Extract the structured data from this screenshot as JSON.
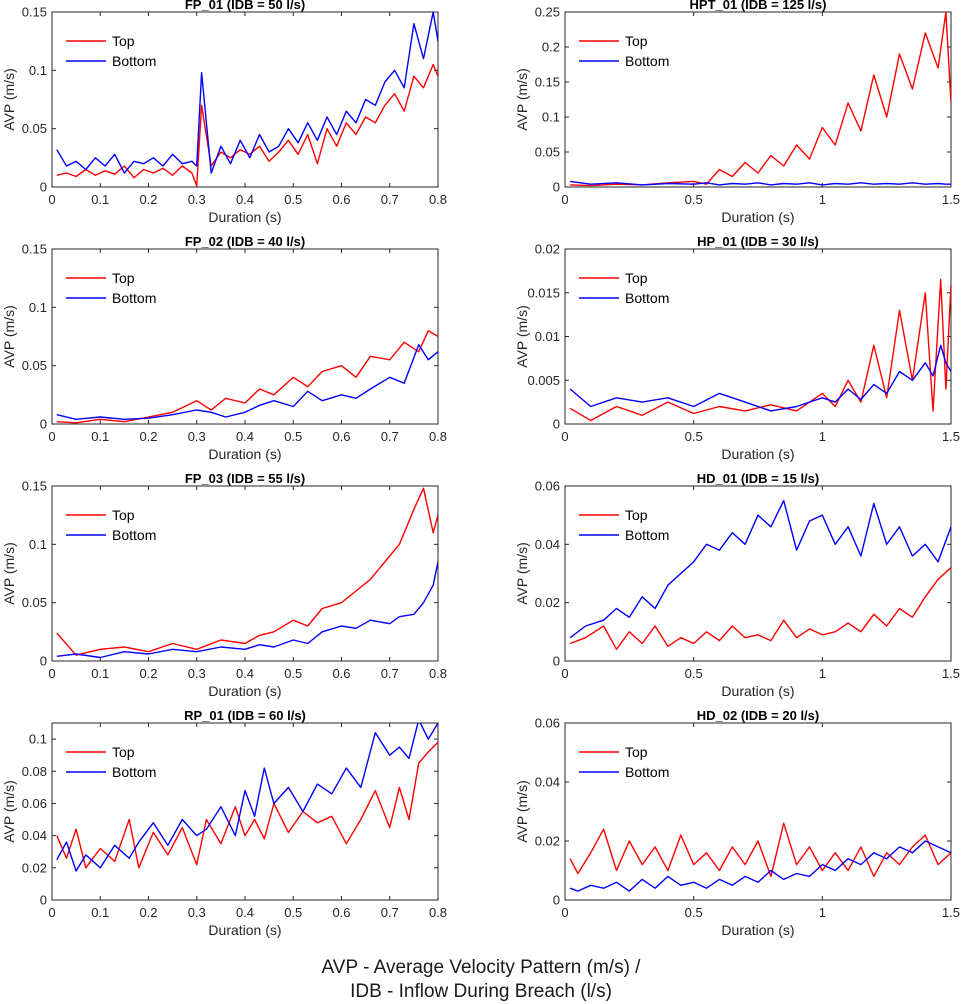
{
  "caption": {
    "line1": "AVP - Average Velocity Pattern (m/s) /",
    "line2": "IDB - Inflow During Breach (l/s)"
  },
  "colors": {
    "top": "#ff0000",
    "bottom": "#0000ff",
    "axis": "#262626",
    "background": "#ffffff"
  },
  "chart_data": [
    {
      "type": "line",
      "title": "FP_01 (IDB = 50 l/s)",
      "xlabel": "Duration (s)",
      "ylabel": "AVP (m/s)",
      "xlim": [
        0,
        0.8
      ],
      "ylim": [
        0,
        0.15
      ],
      "xticks": [
        0,
        0.1,
        0.2,
        0.3,
        0.4,
        0.5,
        0.6,
        0.7,
        0.8
      ],
      "xtick_labels": [
        "0",
        "0.1",
        "0.2",
        "0.3",
        "0.4",
        "0.5",
        "0.6",
        "0.7",
        "0.8"
      ],
      "yticks": [
        0,
        0.05,
        0.1,
        0.15
      ],
      "ytick_labels": [
        "0",
        "0.05",
        "0.1",
        "0.15"
      ],
      "legend": "top-left",
      "x": [
        0.01,
        0.03,
        0.05,
        0.07,
        0.09,
        0.11,
        0.13,
        0.15,
        0.17,
        0.19,
        0.21,
        0.23,
        0.25,
        0.27,
        0.29,
        0.3,
        0.31,
        0.33,
        0.35,
        0.37,
        0.39,
        0.41,
        0.43,
        0.45,
        0.47,
        0.49,
        0.51,
        0.53,
        0.55,
        0.57,
        0.59,
        0.61,
        0.63,
        0.65,
        0.67,
        0.69,
        0.71,
        0.73,
        0.75,
        0.77,
        0.79,
        0.8
      ],
      "series": [
        {
          "name": "Top",
          "values": [
            0.01,
            0.012,
            0.009,
            0.015,
            0.01,
            0.014,
            0.011,
            0.018,
            0.008,
            0.015,
            0.012,
            0.016,
            0.01,
            0.018,
            0.012,
            0.001,
            0.07,
            0.018,
            0.03,
            0.025,
            0.032,
            0.028,
            0.035,
            0.022,
            0.03,
            0.04,
            0.028,
            0.045,
            0.02,
            0.05,
            0.035,
            0.055,
            0.045,
            0.06,
            0.055,
            0.07,
            0.08,
            0.065,
            0.095,
            0.085,
            0.105,
            0.095
          ]
        },
        {
          "name": "Bottom",
          "values": [
            0.032,
            0.018,
            0.022,
            0.015,
            0.025,
            0.018,
            0.028,
            0.012,
            0.022,
            0.02,
            0.025,
            0.018,
            0.028,
            0.02,
            0.022,
            0.018,
            0.098,
            0.012,
            0.035,
            0.02,
            0.04,
            0.025,
            0.045,
            0.03,
            0.035,
            0.05,
            0.038,
            0.055,
            0.04,
            0.06,
            0.045,
            0.065,
            0.055,
            0.075,
            0.07,
            0.09,
            0.1,
            0.085,
            0.14,
            0.11,
            0.15,
            0.125
          ]
        }
      ]
    },
    {
      "type": "line",
      "title": "HPT_01 (IDB = 125 l/s)",
      "xlabel": "Duration (s)",
      "ylabel": "AVP (m/s)",
      "xlim": [
        0,
        1.5
      ],
      "ylim": [
        0,
        0.25
      ],
      "xticks": [
        0,
        0.5,
        1,
        1.5
      ],
      "xtick_labels": [
        "0",
        "0.5",
        "1",
        "1.5"
      ],
      "yticks": [
        0,
        0.05,
        0.1,
        0.15,
        0.2,
        0.25
      ],
      "ytick_labels": [
        "0",
        "0.05",
        "0.1",
        "0.15",
        "0.2",
        "0.25"
      ],
      "legend": "top-left",
      "x": [
        0.02,
        0.1,
        0.2,
        0.3,
        0.4,
        0.5,
        0.55,
        0.6,
        0.65,
        0.7,
        0.75,
        0.8,
        0.85,
        0.9,
        0.95,
        1.0,
        1.05,
        1.1,
        1.15,
        1.2,
        1.25,
        1.3,
        1.35,
        1.4,
        1.45,
        1.48,
        1.5
      ],
      "series": [
        {
          "name": "Top",
          "values": [
            0.003,
            0.002,
            0.004,
            0.003,
            0.006,
            0.008,
            0.004,
            0.025,
            0.015,
            0.035,
            0.02,
            0.045,
            0.03,
            0.06,
            0.04,
            0.085,
            0.06,
            0.12,
            0.08,
            0.16,
            0.1,
            0.19,
            0.14,
            0.22,
            0.17,
            0.25,
            0.12
          ]
        },
        {
          "name": "Bottom",
          "values": [
            0.008,
            0.004,
            0.006,
            0.003,
            0.005,
            0.004,
            0.006,
            0.003,
            0.005,
            0.004,
            0.006,
            0.003,
            0.005,
            0.004,
            0.006,
            0.003,
            0.005,
            0.004,
            0.006,
            0.004,
            0.005,
            0.004,
            0.006,
            0.004,
            0.005,
            0.004,
            0.004
          ]
        }
      ]
    },
    {
      "type": "line",
      "title": "FP_02 (IDB = 40 l/s)",
      "xlabel": "Duration (s)",
      "ylabel": "AVP (m/s)",
      "xlim": [
        0,
        0.8
      ],
      "ylim": [
        0,
        0.15
      ],
      "xticks": [
        0,
        0.1,
        0.2,
        0.3,
        0.4,
        0.5,
        0.6,
        0.7,
        0.8
      ],
      "xtick_labels": [
        "0",
        "0.1",
        "0.2",
        "0.3",
        "0.4",
        "0.5",
        "0.6",
        "0.7",
        "0.8"
      ],
      "yticks": [
        0,
        0.05,
        0.1,
        0.15
      ],
      "ytick_labels": [
        "0",
        "0.05",
        "0.1",
        "0.15"
      ],
      "legend": "top-left",
      "x": [
        0.01,
        0.05,
        0.1,
        0.15,
        0.2,
        0.25,
        0.3,
        0.33,
        0.36,
        0.4,
        0.43,
        0.46,
        0.5,
        0.53,
        0.56,
        0.6,
        0.63,
        0.66,
        0.7,
        0.73,
        0.76,
        0.78,
        0.8
      ],
      "series": [
        {
          "name": "Top",
          "values": [
            0.002,
            0.001,
            0.004,
            0.002,
            0.006,
            0.01,
            0.02,
            0.012,
            0.022,
            0.018,
            0.03,
            0.025,
            0.04,
            0.032,
            0.045,
            0.05,
            0.04,
            0.058,
            0.055,
            0.07,
            0.062,
            0.08,
            0.075
          ]
        },
        {
          "name": "Bottom",
          "values": [
            0.008,
            0.004,
            0.006,
            0.004,
            0.005,
            0.008,
            0.012,
            0.01,
            0.006,
            0.01,
            0.016,
            0.02,
            0.015,
            0.028,
            0.02,
            0.025,
            0.022,
            0.03,
            0.04,
            0.035,
            0.068,
            0.055,
            0.062
          ]
        }
      ]
    },
    {
      "type": "line",
      "title": "HP_01 (IDB = 30 l/s)",
      "xlabel": "Duration (s)",
      "ylabel": "AVP (m/s)",
      "xlim": [
        0,
        1.5
      ],
      "ylim": [
        0,
        0.02
      ],
      "xticks": [
        0,
        0.5,
        1,
        1.5
      ],
      "xtick_labels": [
        "0",
        "0.5",
        "1",
        "1.5"
      ],
      "yticks": [
        0,
        0.005,
        0.01,
        0.015,
        0.02
      ],
      "ytick_labels": [
        "0",
        "0.005",
        "0.01",
        "0.015",
        "0.02"
      ],
      "legend": "top-left",
      "x": [
        0.02,
        0.1,
        0.2,
        0.3,
        0.4,
        0.5,
        0.6,
        0.7,
        0.8,
        0.9,
        1.0,
        1.05,
        1.1,
        1.15,
        1.2,
        1.25,
        1.3,
        1.35,
        1.4,
        1.43,
        1.46,
        1.48,
        1.5
      ],
      "series": [
        {
          "name": "Top",
          "values": [
            0.0018,
            0.0004,
            0.002,
            0.001,
            0.0025,
            0.0012,
            0.002,
            0.0015,
            0.0022,
            0.0015,
            0.0035,
            0.002,
            0.005,
            0.0025,
            0.009,
            0.003,
            0.013,
            0.005,
            0.015,
            0.0015,
            0.0165,
            0.004,
            0.016
          ]
        },
        {
          "name": "Bottom",
          "values": [
            0.004,
            0.002,
            0.003,
            0.0025,
            0.003,
            0.002,
            0.0035,
            0.0025,
            0.0015,
            0.002,
            0.003,
            0.0025,
            0.004,
            0.0028,
            0.0045,
            0.0035,
            0.006,
            0.005,
            0.007,
            0.0055,
            0.009,
            0.007,
            0.006
          ]
        }
      ]
    },
    {
      "type": "line",
      "title": "FP_03 (IDB = 55 l/s)",
      "xlabel": "Duration (s)",
      "ylabel": "AVP (m/s)",
      "xlim": [
        0,
        0.8
      ],
      "ylim": [
        0,
        0.15
      ],
      "xticks": [
        0,
        0.1,
        0.2,
        0.3,
        0.4,
        0.5,
        0.6,
        0.7,
        0.8
      ],
      "xtick_labels": [
        "0",
        "0.1",
        "0.2",
        "0.3",
        "0.4",
        "0.5",
        "0.6",
        "0.7",
        "0.8"
      ],
      "yticks": [
        0,
        0.05,
        0.1,
        0.15
      ],
      "ytick_labels": [
        "0",
        "0.05",
        "0.1",
        "0.15"
      ],
      "legend": "top-left",
      "x": [
        0.01,
        0.05,
        0.1,
        0.15,
        0.2,
        0.25,
        0.3,
        0.35,
        0.4,
        0.43,
        0.46,
        0.5,
        0.53,
        0.56,
        0.6,
        0.63,
        0.66,
        0.7,
        0.72,
        0.75,
        0.77,
        0.79,
        0.8
      ],
      "series": [
        {
          "name": "Top",
          "values": [
            0.024,
            0.005,
            0.01,
            0.012,
            0.008,
            0.015,
            0.01,
            0.018,
            0.015,
            0.022,
            0.025,
            0.035,
            0.03,
            0.045,
            0.05,
            0.06,
            0.07,
            0.09,
            0.1,
            0.13,
            0.148,
            0.11,
            0.125
          ]
        },
        {
          "name": "Bottom",
          "values": [
            0.004,
            0.006,
            0.003,
            0.008,
            0.006,
            0.01,
            0.008,
            0.012,
            0.01,
            0.014,
            0.012,
            0.018,
            0.015,
            0.025,
            0.03,
            0.028,
            0.035,
            0.032,
            0.038,
            0.04,
            0.05,
            0.065,
            0.085
          ]
        }
      ]
    },
    {
      "type": "line",
      "title": "HD_01 (IDB = 15 l/s)",
      "xlabel": "Duration (s)",
      "ylabel": "AVP (m/s)",
      "xlim": [
        0,
        1.5
      ],
      "ylim": [
        0,
        0.06
      ],
      "xticks": [
        0,
        0.5,
        1,
        1.5
      ],
      "xtick_labels": [
        "0",
        "0.5",
        "1",
        "1.5"
      ],
      "yticks": [
        0,
        0.02,
        0.04,
        0.06
      ],
      "ytick_labels": [
        "0",
        "0.02",
        "0.04",
        "0.06"
      ],
      "legend": "top-left",
      "x": [
        0.02,
        0.08,
        0.15,
        0.2,
        0.25,
        0.3,
        0.35,
        0.4,
        0.45,
        0.5,
        0.55,
        0.6,
        0.65,
        0.7,
        0.75,
        0.8,
        0.85,
        0.9,
        0.95,
        1.0,
        1.05,
        1.1,
        1.15,
        1.2,
        1.25,
        1.3,
        1.35,
        1.4,
        1.45,
        1.5
      ],
      "series": [
        {
          "name": "Top",
          "values": [
            0.006,
            0.008,
            0.012,
            0.004,
            0.01,
            0.006,
            0.012,
            0.005,
            0.008,
            0.006,
            0.01,
            0.007,
            0.012,
            0.008,
            0.009,
            0.007,
            0.014,
            0.008,
            0.011,
            0.009,
            0.01,
            0.013,
            0.01,
            0.016,
            0.012,
            0.018,
            0.015,
            0.022,
            0.028,
            0.032
          ]
        },
        {
          "name": "Bottom",
          "values": [
            0.008,
            0.012,
            0.014,
            0.018,
            0.015,
            0.022,
            0.018,
            0.026,
            0.03,
            0.034,
            0.04,
            0.038,
            0.044,
            0.04,
            0.05,
            0.046,
            0.055,
            0.038,
            0.048,
            0.05,
            0.04,
            0.046,
            0.036,
            0.054,
            0.04,
            0.046,
            0.036,
            0.04,
            0.034,
            0.046
          ]
        }
      ]
    },
    {
      "type": "line",
      "title": "RP_01 (IDB = 60 l/s)",
      "xlabel": "Duration (s)",
      "ylabel": "AVP (m/s)",
      "xlim": [
        0,
        0.8
      ],
      "ylim": [
        0,
        0.11
      ],
      "xticks": [
        0,
        0.1,
        0.2,
        0.3,
        0.4,
        0.5,
        0.6,
        0.7,
        0.8
      ],
      "xtick_labels": [
        "0",
        "0.1",
        "0.2",
        "0.3",
        "0.4",
        "0.5",
        "0.6",
        "0.7",
        "0.8"
      ],
      "yticks": [
        0,
        0.02,
        0.04,
        0.06,
        0.08,
        0.1
      ],
      "ytick_labels": [
        "0",
        "0.02",
        "0.04",
        "0.06",
        "0.08",
        "0.1"
      ],
      "legend": "top-left",
      "x": [
        0.01,
        0.03,
        0.05,
        0.07,
        0.1,
        0.13,
        0.16,
        0.18,
        0.21,
        0.24,
        0.27,
        0.3,
        0.32,
        0.35,
        0.38,
        0.4,
        0.42,
        0.44,
        0.46,
        0.49,
        0.52,
        0.55,
        0.58,
        0.61,
        0.64,
        0.67,
        0.7,
        0.72,
        0.74,
        0.76,
        0.78,
        0.8
      ],
      "series": [
        {
          "name": "Top",
          "values": [
            0.04,
            0.026,
            0.044,
            0.02,
            0.032,
            0.024,
            0.05,
            0.02,
            0.042,
            0.028,
            0.045,
            0.022,
            0.05,
            0.035,
            0.058,
            0.04,
            0.05,
            0.038,
            0.06,
            0.042,
            0.055,
            0.048,
            0.052,
            0.035,
            0.05,
            0.068,
            0.045,
            0.07,
            0.05,
            0.085,
            0.092,
            0.098
          ]
        },
        {
          "name": "Bottom",
          "values": [
            0.025,
            0.036,
            0.018,
            0.028,
            0.02,
            0.034,
            0.026,
            0.036,
            0.048,
            0.034,
            0.05,
            0.04,
            0.044,
            0.058,
            0.04,
            0.068,
            0.052,
            0.082,
            0.06,
            0.07,
            0.055,
            0.072,
            0.066,
            0.082,
            0.07,
            0.104,
            0.09,
            0.095,
            0.088,
            0.112,
            0.1,
            0.11
          ]
        }
      ]
    },
    {
      "type": "line",
      "title": "HD_02 (IDB = 20 l/s)",
      "xlabel": "Duration (s)",
      "ylabel": "AVP (m/s)",
      "xlim": [
        0,
        1.5
      ],
      "ylim": [
        0,
        0.06
      ],
      "xticks": [
        0,
        0.5,
        1,
        1.5
      ],
      "xtick_labels": [
        "0",
        "0.5",
        "1",
        "1.5"
      ],
      "yticks": [
        0,
        0.02,
        0.04,
        0.06
      ],
      "ytick_labels": [
        "0",
        "0.02",
        "0.04",
        "0.06"
      ],
      "legend": "top-left",
      "x": [
        0.02,
        0.05,
        0.1,
        0.15,
        0.2,
        0.25,
        0.3,
        0.35,
        0.4,
        0.45,
        0.5,
        0.55,
        0.6,
        0.65,
        0.7,
        0.75,
        0.8,
        0.85,
        0.9,
        0.95,
        1.0,
        1.05,
        1.1,
        1.15,
        1.2,
        1.25,
        1.3,
        1.35,
        1.4,
        1.45,
        1.5
      ],
      "series": [
        {
          "name": "Top",
          "values": [
            0.014,
            0.009,
            0.016,
            0.024,
            0.01,
            0.02,
            0.012,
            0.018,
            0.01,
            0.022,
            0.012,
            0.016,
            0.01,
            0.018,
            0.012,
            0.02,
            0.008,
            0.026,
            0.012,
            0.018,
            0.01,
            0.016,
            0.01,
            0.018,
            0.008,
            0.016,
            0.012,
            0.018,
            0.022,
            0.012,
            0.016
          ]
        },
        {
          "name": "Bottom",
          "values": [
            0.004,
            0.003,
            0.005,
            0.004,
            0.006,
            0.003,
            0.007,
            0.004,
            0.008,
            0.005,
            0.006,
            0.004,
            0.007,
            0.005,
            0.008,
            0.006,
            0.01,
            0.007,
            0.009,
            0.008,
            0.012,
            0.01,
            0.014,
            0.012,
            0.016,
            0.014,
            0.018,
            0.016,
            0.02,
            0.018,
            0.016
          ]
        }
      ]
    }
  ]
}
